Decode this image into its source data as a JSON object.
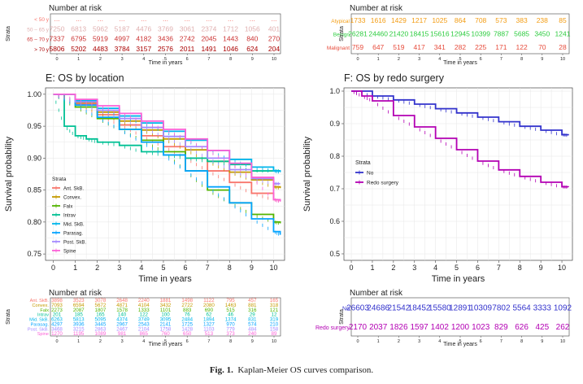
{
  "caption": {
    "label": "Fig. 1.",
    "text": "Kaplan-Meier OS curves comparison."
  },
  "colors": {
    "grid": "#e6e6e6",
    "panel_border": "#444444",
    "text": "#222222",
    "ant_skb": "#f8766d",
    "convex": "#c49a00",
    "falx": "#53b400",
    "intrav": "#00c094",
    "mid_skb": "#00b6eb",
    "parasag": "#06a4ff",
    "post_skb": "#a58aff",
    "spine": "#fb61d7",
    "no": "#3333cc",
    "redo": "#b300b3",
    "age1": "#f8766d",
    "age2": "#e0b0b0",
    "age3": "#cc3333",
    "age4": "#aa0000",
    "atypical": "#f39c12",
    "benign": "#2ecc40",
    "malignant": "#e74c3c"
  },
  "chart_data": [
    {
      "type": "table",
      "id": "tbl_top_left",
      "title": "Number at risk",
      "ylabel": "Strata",
      "xlabel": "Time in years",
      "x": [
        0,
        1,
        2,
        3,
        4,
        5,
        6,
        7,
        8,
        9,
        10
      ],
      "rows": [
        {
          "label": "< 50 y",
          "color_key": "age1",
          "values": [
            "...",
            "...",
            "...",
            "...",
            "...",
            "...",
            "...",
            "...",
            "...",
            "...",
            "..."
          ]
        },
        {
          "label": "50 – 65 y",
          "color_key": "age2",
          "values": [
            "7250",
            "6813",
            "5962",
            "5187",
            "4476",
            "3769",
            "3061",
            "2374",
            "1712",
            "1056",
            "401"
          ]
        },
        {
          "label": "65 – 70 y",
          "color_key": "age3",
          "values": [
            "7337",
            "6795",
            "5919",
            "4997",
            "4182",
            "3436",
            "2742",
            "2045",
            "1443",
            "840",
            "270"
          ]
        },
        {
          "label": "> 70 y",
          "color_key": "age4",
          "values": [
            "5806",
            "5202",
            "4483",
            "3784",
            "3157",
            "2576",
            "2011",
            "1491",
            "1046",
            "624",
            "204"
          ]
        }
      ]
    },
    {
      "type": "table",
      "id": "tbl_top_right",
      "title": "Number at risk",
      "ylabel": "Strata",
      "xlabel": "Time in years",
      "x": [
        0,
        1,
        2,
        3,
        4,
        5,
        6,
        7,
        8,
        9,
        10
      ],
      "rows": [
        {
          "label": "Atypical",
          "color_key": "atypical",
          "values": [
            "1733",
            "1616",
            "1429",
            "1217",
            "1025",
            "864",
            "708",
            "573",
            "383",
            "238",
            "85"
          ]
        },
        {
          "label": "Benign",
          "color_key": "benign",
          "values": [
            "26281",
            "24460",
            "21420",
            "18415",
            "15616",
            "12945",
            "10399",
            "7887",
            "5685",
            "3450",
            "1241"
          ]
        },
        {
          "label": "Malignant",
          "color_key": "malignant",
          "values": [
            "759",
            "647",
            "519",
            "417",
            "341",
            "282",
            "225",
            "171",
            "122",
            "70",
            "28"
          ]
        }
      ]
    },
    {
      "type": "line",
      "id": "plot_e",
      "title": "E: OS by location",
      "xlabel": "Time in years",
      "ylabel": "Survival probability",
      "xlim": [
        0,
        10.3
      ],
      "ylim": [
        0.74,
        1.01
      ],
      "xticks": [
        0,
        1,
        2,
        3,
        4,
        5,
        6,
        7,
        8,
        9,
        10
      ],
      "yticks": [
        0.75,
        0.8,
        0.85,
        0.9,
        0.95,
        1.0
      ],
      "ytick_labels": [
        "0.75",
        "0.80",
        "0.85",
        "0.90",
        "0.95",
        "1.00"
      ],
      "legend_title": "Strata",
      "legend_position": "bottom-left",
      "series": [
        {
          "name": "Ant. SkB.",
          "color_key": "ant_skb",
          "x": [
            0,
            1,
            2,
            3,
            4,
            5,
            6,
            7,
            8,
            9,
            10,
            10.3
          ],
          "y": [
            1.0,
            0.985,
            0.968,
            0.952,
            0.935,
            0.918,
            0.9,
            0.88,
            0.862,
            0.845,
            0.835,
            0.833
          ]
        },
        {
          "name": "Convex.",
          "color_key": "convex",
          "x": [
            0,
            1,
            2,
            3,
            4,
            5,
            6,
            7,
            8,
            9,
            10,
            10.3
          ],
          "y": [
            1.0,
            0.987,
            0.972,
            0.958,
            0.944,
            0.93,
            0.913,
            0.895,
            0.878,
            0.866,
            0.855,
            0.853
          ]
        },
        {
          "name": "Falx",
          "color_key": "falx",
          "x": [
            0,
            1,
            2,
            3,
            4,
            5,
            6,
            7,
            8,
            9,
            10,
            10.3
          ],
          "y": [
            1.0,
            0.98,
            0.962,
            0.945,
            0.928,
            0.91,
            0.88,
            0.85,
            0.83,
            0.812,
            0.8,
            0.798
          ]
        },
        {
          "name": "Intrav",
          "color_key": "intrav",
          "x": [
            0,
            0.5,
            1,
            1.5,
            2,
            3,
            4,
            5,
            6,
            7,
            8,
            9,
            10,
            10.3
          ],
          "y": [
            1.0,
            0.95,
            0.935,
            0.93,
            0.925,
            0.92,
            0.91,
            0.905,
            0.9,
            0.895,
            0.89,
            0.88,
            0.88,
            0.88
          ]
        },
        {
          "name": "Mid. SkB.",
          "color_key": "mid_skb",
          "x": [
            0,
            1,
            2,
            3,
            4,
            5,
            6,
            7,
            8,
            9,
            10,
            10.3
          ],
          "y": [
            1.0,
            0.99,
            0.978,
            0.966,
            0.955,
            0.942,
            0.928,
            0.912,
            0.898,
            0.886,
            0.88,
            0.878
          ]
        },
        {
          "name": "Parasag.",
          "color_key": "parasag",
          "x": [
            0,
            1,
            2,
            3,
            4,
            5,
            6,
            7,
            8,
            9,
            10,
            10.3
          ],
          "y": [
            1.0,
            0.983,
            0.964,
            0.945,
            0.925,
            0.905,
            0.88,
            0.855,
            0.83,
            0.805,
            0.785,
            0.78
          ]
        },
        {
          "name": "Post. SkB.",
          "color_key": "post_skb",
          "x": [
            0,
            1,
            2,
            3,
            4,
            5,
            6,
            7,
            8,
            9,
            10,
            10.3
          ],
          "y": [
            1.0,
            0.988,
            0.975,
            0.962,
            0.948,
            0.934,
            0.918,
            0.9,
            0.882,
            0.868,
            0.86,
            0.86
          ]
        },
        {
          "name": "Spine",
          "color_key": "spine",
          "x": [
            0,
            1,
            2,
            3,
            4,
            5,
            6,
            7,
            8,
            9,
            10,
            10.3
          ],
          "y": [
            1.0,
            0.992,
            0.982,
            0.97,
            0.958,
            0.945,
            0.93,
            0.912,
            0.892,
            0.87,
            0.835,
            0.832
          ]
        }
      ]
    },
    {
      "type": "line",
      "id": "plot_f",
      "title": "F: OS by redo surgery",
      "xlabel": "Time in years",
      "ylabel": "Survival probability",
      "xlim": [
        0,
        10.3
      ],
      "ylim": [
        0.48,
        1.01
      ],
      "xticks": [
        0,
        1,
        2,
        3,
        4,
        5,
        6,
        7,
        8,
        9,
        10
      ],
      "yticks": [
        0.5,
        0.6,
        0.7,
        0.8,
        0.9,
        1.0
      ],
      "ytick_labels": [
        "0.5",
        "0.6",
        "0.7",
        "0.8",
        "0.9",
        "1.0"
      ],
      "legend_title": "Strata",
      "legend_position": "middle-left",
      "series": [
        {
          "name": "No",
          "color_key": "no",
          "x": [
            0,
            1,
            2,
            3,
            4,
            5,
            6,
            7,
            8,
            9,
            10,
            10.3
          ],
          "y": [
            1.0,
            0.985,
            0.973,
            0.96,
            0.946,
            0.933,
            0.92,
            0.906,
            0.892,
            0.88,
            0.866,
            0.864
          ]
        },
        {
          "name": "Redo surgery",
          "color_key": "redo",
          "x": [
            0,
            0.5,
            1,
            2,
            3,
            4,
            5,
            6,
            7,
            8,
            9,
            10,
            10.3
          ],
          "y": [
            1.0,
            0.985,
            0.97,
            0.925,
            0.89,
            0.855,
            0.82,
            0.785,
            0.758,
            0.738,
            0.72,
            0.706,
            0.705
          ]
        }
      ]
    },
    {
      "type": "table",
      "id": "tbl_bottom_left",
      "title": "Number at risk",
      "ylabel": "Strata",
      "xlabel": "Time in years",
      "x": [
        0,
        1,
        2,
        3,
        4,
        5,
        6,
        7,
        8,
        9,
        10
      ],
      "rows": [
        {
          "label": "Ant. SkB.",
          "color_key": "ant_skb",
          "values": [
            "3898",
            "3523",
            "3078",
            "2648",
            "2240",
            "1881",
            "1498",
            "1122",
            "795",
            "457",
            "165"
          ]
        },
        {
          "label": "Convex.",
          "color_key": "convex",
          "values": [
            "7093",
            "6594",
            "5672",
            "4871",
            "4104",
            "3432",
            "2722",
            "2080",
            "1463",
            "881",
            "318"
          ]
        },
        {
          "label": "Falx",
          "color_key": "falx",
          "values": [
            "2273",
            "2087",
            "1807",
            "1578",
            "1333",
            "1101",
            "883",
            "690",
            "515",
            "316",
            "121"
          ]
        },
        {
          "label": "Intrav",
          "color_key": "intrav",
          "values": [
            "201",
            "185",
            "165",
            "140",
            "122",
            "100",
            "76",
            "62",
            "46",
            "29",
            "12"
          ]
        },
        {
          "label": "Mid. SkB.",
          "color_key": "mid_skb",
          "values": [
            "6263",
            "5813",
            "5095",
            "4374",
            "3749",
            "3095",
            "2484",
            "1894",
            "1374",
            "831",
            "319"
          ]
        },
        {
          "label": "Parasag.",
          "color_key": "parasag",
          "values": [
            "4297",
            "3936",
            "3445",
            "2967",
            "2543",
            "2141",
            "1725",
            "1327",
            "970",
            "574",
            "210"
          ]
        },
        {
          "label": "Post. SkB.",
          "color_key": "post_skb",
          "values": [
            "3468",
            "3215",
            "2863",
            "2467",
            "2104",
            "1758",
            "1428",
            "1103",
            "779",
            "484",
            "158"
          ]
        },
        {
          "label": "Spine",
          "color_key": "spine",
          "values": [
            "1270",
            "1195",
            "1089",
            "981",
            "865",
            "760",
            "650",
            "513",
            "373",
            "240",
            "89"
          ]
        }
      ]
    },
    {
      "type": "table",
      "id": "tbl_bottom_right",
      "title": "Number at risk",
      "ylabel": "Strata",
      "xlabel": "Time in years",
      "x": [
        0,
        1,
        2,
        3,
        4,
        5,
        6,
        7,
        8,
        9,
        10
      ],
      "rows": [
        {
          "label": "No",
          "color_key": "no",
          "values": [
            "26603",
            "24686",
            "21542",
            "18452",
            "15580",
            "12891",
            "10309",
            "7802",
            "5564",
            "3333",
            "1092"
          ]
        },
        {
          "label": "Redo surgery",
          "color_key": "redo",
          "values": [
            "2170",
            "2037",
            "1826",
            "1597",
            "1402",
            "1200",
            "1023",
            "829",
            "626",
            "425",
            "262"
          ]
        }
      ]
    }
  ]
}
